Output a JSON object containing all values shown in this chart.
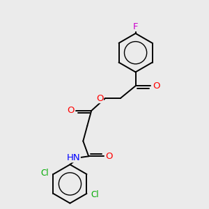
{
  "background_color": "#ebebeb",
  "atom_colors": {
    "O": "#ff0000",
    "N": "#0000ff",
    "Cl": "#00aa00",
    "F": "#cc00cc",
    "C": "#000000",
    "H": "#606060"
  },
  "bond_color": "#000000",
  "bond_width": 1.4,
  "font_size_atom": 8.5
}
